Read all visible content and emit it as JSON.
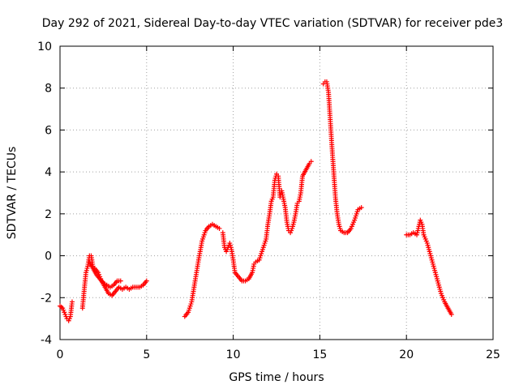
{
  "chart_data": {
    "type": "scatter",
    "title": "Day 292 of 2021, Sidereal Day-to-day VTEC variation (SDTVAR) for receiver pde3",
    "xlabel": "GPS time / hours",
    "ylabel": "SDTVAR / TECUs",
    "xlim": [
      0,
      25
    ],
    "ylim": [
      -4,
      10
    ],
    "xticks": [
      0,
      5,
      10,
      15,
      20,
      25
    ],
    "yticks": [
      -4,
      -2,
      0,
      2,
      4,
      6,
      8,
      10
    ],
    "grid": true,
    "marker": "+",
    "color": "#ff0000",
    "series": [
      {
        "name": "SDTVAR",
        "segments": [
          [
            [
              0.0,
              -2.4
            ],
            [
              0.15,
              -2.5
            ],
            [
              0.3,
              -2.8
            ],
            [
              0.4,
              -3.0
            ],
            [
              0.5,
              -3.1
            ],
            [
              0.6,
              -2.9
            ],
            [
              0.7,
              -2.2
            ]
          ],
          [
            [
              1.3,
              -2.5
            ],
            [
              1.4,
              -1.6
            ],
            [
              1.5,
              -0.8
            ],
            [
              1.6,
              -0.5
            ],
            [
              1.7,
              0.0
            ],
            [
              1.8,
              0.0
            ],
            [
              1.9,
              -0.5
            ],
            [
              2.0,
              -0.6
            ],
            [
              2.2,
              -0.8
            ],
            [
              2.4,
              -1.2
            ],
            [
              2.6,
              -1.5
            ],
            [
              2.8,
              -1.8
            ],
            [
              3.0,
              -1.9
            ],
            [
              3.2,
              -1.7
            ],
            [
              3.4,
              -1.5
            ],
            [
              3.6,
              -1.6
            ],
            [
              3.8,
              -1.5
            ],
            [
              4.0,
              -1.6
            ],
            [
              4.2,
              -1.5
            ],
            [
              4.4,
              -1.5
            ],
            [
              4.6,
              -1.5
            ],
            [
              4.8,
              -1.4
            ],
            [
              5.0,
              -1.2
            ]
          ],
          [
            [
              1.7,
              -0.3
            ],
            [
              1.9,
              -0.6
            ],
            [
              2.1,
              -0.9
            ],
            [
              2.3,
              -1.1
            ],
            [
              2.5,
              -1.3
            ],
            [
              2.7,
              -1.4
            ],
            [
              2.9,
              -1.5
            ],
            [
              3.1,
              -1.4
            ],
            [
              3.3,
              -1.2
            ],
            [
              3.5,
              -1.2
            ]
          ],
          [
            [
              7.2,
              -2.9
            ],
            [
              7.4,
              -2.7
            ],
            [
              7.6,
              -2.2
            ],
            [
              7.8,
              -1.2
            ],
            [
              8.0,
              -0.2
            ],
            [
              8.2,
              0.7
            ],
            [
              8.4,
              1.2
            ],
            [
              8.6,
              1.4
            ],
            [
              8.8,
              1.5
            ],
            [
              9.0,
              1.4
            ],
            [
              9.2,
              1.3
            ]
          ],
          [
            [
              9.4,
              1.1
            ],
            [
              9.5,
              0.4
            ],
            [
              9.6,
              0.2
            ],
            [
              9.8,
              0.6
            ],
            [
              9.9,
              0.3
            ],
            [
              10.0,
              -0.2
            ],
            [
              10.1,
              -0.8
            ],
            [
              10.3,
              -1.0
            ],
            [
              10.5,
              -1.2
            ],
            [
              10.7,
              -1.2
            ],
            [
              10.9,
              -1.1
            ],
            [
              11.1,
              -0.8
            ],
            [
              11.2,
              -0.4
            ],
            [
              11.3,
              -0.3
            ],
            [
              11.5,
              -0.2
            ],
            [
              11.7,
              0.3
            ],
            [
              11.9,
              0.8
            ],
            [
              12.0,
              1.5
            ],
            [
              12.1,
              2.0
            ],
            [
              12.2,
              2.6
            ],
            [
              12.3,
              2.8
            ],
            [
              12.4,
              3.6
            ],
            [
              12.5,
              3.9
            ],
            [
              12.6,
              3.8
            ],
            [
              12.7,
              2.8
            ],
            [
              12.8,
              3.1
            ],
            [
              12.9,
              2.7
            ],
            [
              13.0,
              2.3
            ],
            [
              13.1,
              1.6
            ],
            [
              13.2,
              1.2
            ],
            [
              13.3,
              1.1
            ],
            [
              13.4,
              1.3
            ],
            [
              13.5,
              1.6
            ],
            [
              13.6,
              2.0
            ],
            [
              13.7,
              2.5
            ],
            [
              13.8,
              2.6
            ],
            [
              13.9,
              3.0
            ],
            [
              14.0,
              3.8
            ],
            [
              14.2,
              4.1
            ],
            [
              14.4,
              4.4
            ],
            [
              14.5,
              4.5
            ]
          ],
          [
            [
              15.2,
              8.2
            ],
            [
              15.3,
              8.3
            ],
            [
              15.4,
              8.3
            ],
            [
              15.5,
              7.8
            ],
            [
              15.6,
              6.5
            ],
            [
              15.7,
              5.2
            ],
            [
              15.8,
              4.0
            ],
            [
              15.9,
              2.8
            ],
            [
              16.0,
              2.0
            ],
            [
              16.1,
              1.5
            ],
            [
              16.2,
              1.2
            ],
            [
              16.4,
              1.1
            ],
            [
              16.6,
              1.1
            ],
            [
              16.8,
              1.3
            ],
            [
              17.0,
              1.7
            ],
            [
              17.2,
              2.2
            ],
            [
              17.4,
              2.3
            ]
          ],
          [
            [
              20.0,
              1.0
            ],
            [
              20.2,
              1.0
            ],
            [
              20.4,
              1.1
            ],
            [
              20.6,
              1.0
            ],
            [
              20.8,
              1.7
            ],
            [
              20.9,
              1.5
            ],
            [
              21.0,
              1.0
            ],
            [
              21.2,
              0.6
            ],
            [
              21.4,
              0.0
            ],
            [
              21.6,
              -0.6
            ],
            [
              21.8,
              -1.2
            ],
            [
              22.0,
              -1.8
            ],
            [
              22.2,
              -2.2
            ],
            [
              22.4,
              -2.5
            ],
            [
              22.6,
              -2.8
            ]
          ]
        ]
      }
    ]
  }
}
